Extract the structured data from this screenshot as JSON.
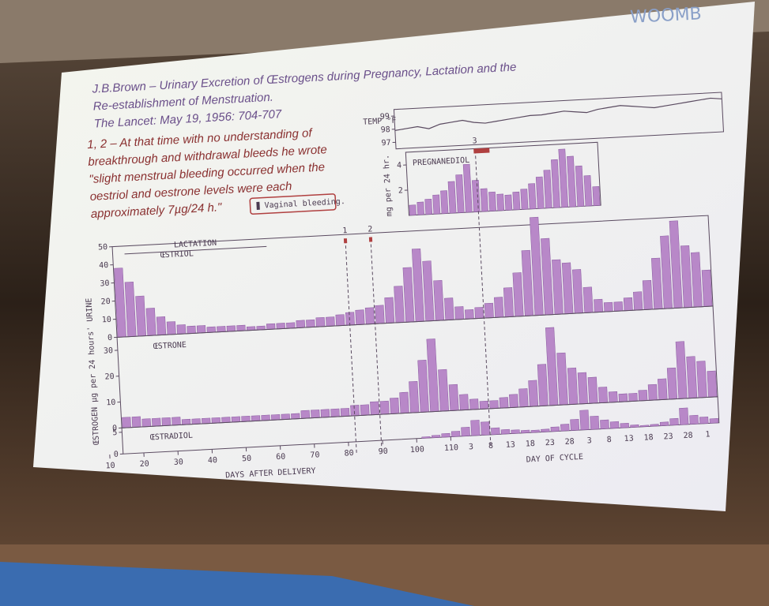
{
  "slide": {
    "logo": "WOOMB",
    "reference": [
      "J.B.Brown – Urinary Excretion of Œstrogens during Pregnancy, Lactation and the",
      "Re-establishment of Menstruation.",
      "The Lancet: May 19, 1956: 704-707"
    ],
    "notes": [
      "1, 2 – At that time  with no understanding of",
      "breakthrough and withdrawal bleeds he wrote",
      "\"slight menstrual bleeding occurred when the",
      "oestriol and oestrone levels were each",
      "approximately 7µg/24 h.\""
    ],
    "legend": "Vaginal bleeding."
  },
  "figure": {
    "temp": {
      "label": "TEMP °F",
      "ylim": [
        96.5,
        99.5
      ],
      "yticks": [
        97,
        98,
        99
      ],
      "values": [
        97.9,
        98,
        98.1,
        97.9,
        98.2,
        98.3,
        98.4,
        98.2,
        98.1,
        98.2,
        98.3,
        98.4,
        98.5,
        98.5,
        98.6,
        98.7,
        98.6,
        98.5,
        98.7,
        98.8,
        98.9,
        98.8,
        98.7,
        98.6,
        98.7,
        98.8,
        98.9,
        99,
        99.1,
        99
      ]
    },
    "pregnanediol": {
      "label": "PREGNANEDIOL",
      "unit": "mg per 24 hr.",
      "ylim": [
        0,
        5
      ],
      "yticks": [
        2,
        4
      ],
      "values": [
        0.8,
        1,
        1.2,
        1.5,
        1.8,
        2.5,
        3,
        3.8,
        2.5,
        1.8,
        1.5,
        1.3,
        1.2,
        1.4,
        1.6,
        2,
        2.5,
        3,
        3.8,
        4.6,
        4,
        3.2,
        2.4,
        1.5
      ]
    },
    "oestrogen_label": "ŒSTROGEN µg per 24 hours' URINE",
    "lactation": "LACTATION",
    "markers": [
      "1",
      "2",
      "3"
    ],
    "oestriol": {
      "label": "ŒSTRIOL",
      "ylim": [
        0,
        50
      ],
      "yticks": [
        0,
        10,
        20,
        30,
        40,
        50
      ],
      "values": [
        38,
        30,
        22,
        15,
        10,
        7,
        5,
        4,
        4,
        3,
        3,
        3,
        3,
        2,
        2,
        3,
        3,
        3,
        4,
        4,
        5,
        5,
        6,
        7,
        8,
        9,
        10,
        14,
        20,
        30,
        40,
        33,
        22,
        12,
        7,
        5,
        6,
        8,
        11,
        16,
        24,
        36,
        54,
        42,
        30,
        28,
        24,
        14,
        7,
        5,
        5,
        7,
        10,
        16,
        28,
        40,
        48,
        34,
        30,
        20
      ]
    },
    "oestrone": {
      "label": "ŒSTRONE",
      "ylim": [
        0,
        35
      ],
      "yticks": [
        0,
        10,
        20,
        30
      ],
      "values": [
        4,
        4,
        3,
        3,
        3,
        3,
        2,
        2,
        2,
        2,
        2,
        2,
        2,
        2,
        2,
        2,
        2,
        2,
        3,
        3,
        3,
        3,
        3,
        4,
        4,
        5,
        5,
        6,
        8,
        12,
        20,
        28,
        16,
        10,
        6,
        4,
        3,
        3,
        4,
        5,
        7,
        10,
        16,
        30,
        20,
        14,
        12,
        10,
        6,
        4,
        3,
        3,
        4,
        6,
        8,
        12,
        22,
        16,
        14,
        10
      ]
    },
    "oestradiol": {
      "label": "ŒSTRADIOL",
      "ylim": [
        0,
        6
      ],
      "yticks": [
        0,
        5
      ],
      "values": [
        0,
        0,
        0,
        0,
        0,
        0,
        0,
        0,
        0,
        0,
        0,
        0,
        0,
        0,
        0,
        0,
        0,
        0,
        0,
        0,
        0,
        0,
        0,
        0,
        0,
        0,
        0,
        0,
        0,
        0,
        0.3,
        0.5,
        0.8,
        1.2,
        2,
        3.5,
        3,
        1.5,
        1,
        0.8,
        0.6,
        0.5,
        0.6,
        1,
        1.5,
        2.5,
        4.5,
        3,
        2,
        1.5,
        1,
        0.5,
        0.3,
        0.4,
        0.8,
        1.5,
        3.8,
        2,
        1.5,
        1
      ]
    },
    "days_ticks": [
      10,
      20,
      30,
      40,
      50,
      60,
      70,
      80,
      90,
      100,
      110
    ],
    "days_label": "DAYS AFTER DELIVERY",
    "cycle_ticks": [
      3,
      8,
      13,
      18,
      23,
      28,
      3,
      8,
      13,
      18,
      23,
      28,
      1
    ],
    "cycle_label": "DAY OF CYCLE"
  }
}
